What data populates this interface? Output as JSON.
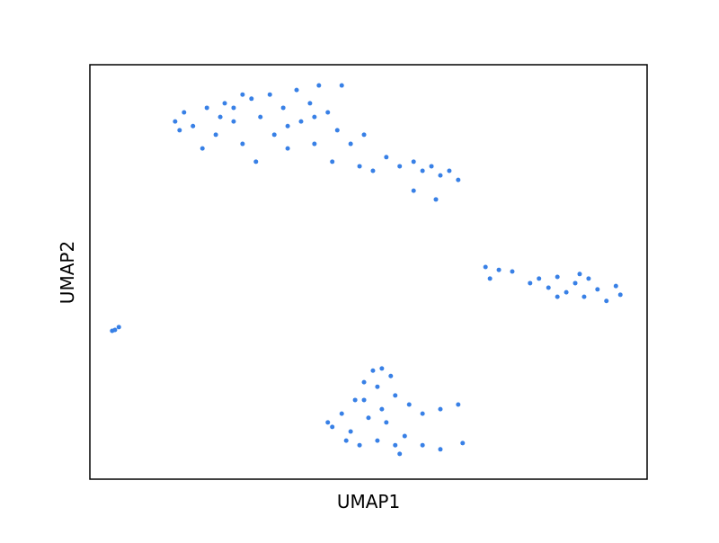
{
  "chart_data": {
    "type": "scatter",
    "xlabel": "UMAP1",
    "ylabel": "UMAP2",
    "color": "#3880e6",
    "xlim": [
      0,
      100
    ],
    "ylim": [
      0,
      100
    ],
    "x": [
      15.3,
      16.9,
      18.5,
      21.0,
      22.6,
      24.2,
      25.8,
      27.4,
      29.0,
      29.8,
      30.6,
      32.3,
      33.1,
      34.7,
      35.5,
      37.1,
      37.9,
      39.5,
      40.3,
      41.1,
      42.7,
      43.5,
      44.4,
      45.2,
      46.8,
      48.4,
      49.2,
      50.8,
      53.2,
      55.6,
      58.1,
      59.7,
      61.3,
      62.9,
      64.5,
      66.1,
      62.1,
      58.1,
      20.2,
      16.1,
      27.4,
      35.5,
      25.8,
      40.3,
      23.4,
      71.0,
      73.4,
      75.8,
      79.0,
      80.6,
      82.3,
      83.9,
      85.5,
      87.1,
      88.7,
      89.5,
      91.1,
      92.7,
      94.4,
      95.2,
      71.8,
      83.9,
      87.9,
      4.5,
      5.2,
      4.0,
      50.8,
      52.4,
      54.0,
      49.2,
      51.6,
      54.8,
      47.6,
      45.2,
      43.5,
      46.8,
      50.0,
      53.2,
      57.3,
      59.7,
      62.9,
      66.1,
      48.4,
      51.6,
      55.6,
      56.5,
      59.7,
      62.9,
      66.9,
      46.0,
      42.7,
      54.8,
      52.4,
      49.2
    ],
    "y": [
      86.3,
      88.5,
      85.2,
      89.6,
      83.1,
      90.7,
      86.3,
      80.9,
      91.8,
      76.6,
      87.4,
      92.8,
      83.1,
      89.6,
      79.8,
      93.9,
      86.3,
      90.7,
      80.9,
      95.0,
      88.5,
      76.6,
      84.2,
      95.0,
      80.9,
      75.5,
      83.1,
      74.4,
      77.7,
      75.5,
      76.6,
      74.4,
      75.5,
      73.3,
      74.4,
      72.2,
      67.5,
      69.6,
      79.8,
      84.2,
      92.8,
      85.2,
      89.6,
      87.4,
      87.4,
      51.2,
      50.5,
      50.1,
      47.3,
      48.4,
      46.2,
      48.8,
      45.1,
      47.3,
      44.0,
      48.4,
      45.8,
      43.0,
      46.6,
      44.5,
      48.4,
      44.0,
      49.5,
      36.0,
      36.7,
      35.8,
      26.2,
      26.7,
      24.9,
      23.4,
      22.3,
      20.2,
      19.1,
      15.8,
      12.6,
      11.5,
      14.8,
      13.7,
      18.0,
      15.8,
      16.9,
      18.0,
      8.2,
      9.3,
      6.1,
      10.4,
      8.2,
      7.2,
      8.7,
      9.3,
      13.7,
      8.2,
      16.9,
      19.1
    ]
  }
}
